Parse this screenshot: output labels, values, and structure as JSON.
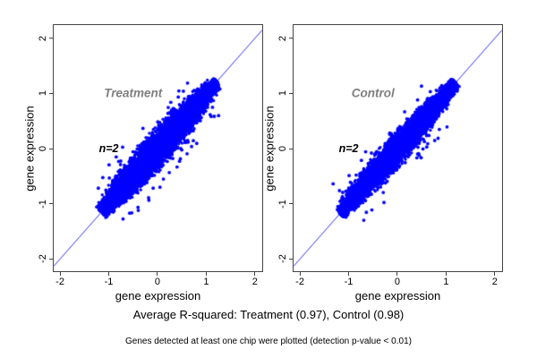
{
  "chart_data": {
    "type": "scatter",
    "layout": "two-panel side-by-side, shared styling, identity reference line",
    "caption": "Average R-squared: Treatment (0.97), Control (0.98)",
    "footnote": "Genes detected at least one chip were plotted (detection p-value < 0.01)",
    "colors": {
      "point": "#0000FF",
      "reference_line": "#3333F0",
      "box": "#444444",
      "group_label": "#7F7F7F",
      "annotation": "#000000",
      "background": "#FFFFFF"
    },
    "panels": [
      {
        "title": "Treatment",
        "annotation": "n=2",
        "n_chips": 2,
        "r_squared": 0.97,
        "xlabel": "gene expression",
        "ylabel": "gene expression",
        "xlim": [
          -2.13,
          2.15
        ],
        "ylim": [
          -2.22,
          2.24
        ],
        "xticks": [
          -2,
          -1,
          0,
          1,
          2
        ],
        "yticks": [
          -2,
          -1,
          0,
          1,
          2
        ],
        "xtick_labels": [
          "-2",
          "-1",
          "0",
          "1",
          "2"
        ],
        "ytick_labels": [
          "-2",
          "-1",
          "0",
          "1",
          "2"
        ],
        "reference_line": "y = x",
        "label_pos": {
          "title": [
            -0.5,
            1.0
          ],
          "annotation": [
            -1.0,
            0.0
          ]
        },
        "cloud": {
          "seed": 101,
          "n_core": 7200,
          "t_min": -1.16,
          "t_max": 1.22,
          "t_mean": -0.05,
          "t_sd": 0.6,
          "uniform_frac": 0.35,
          "width_floor": 0.012,
          "width_max": 0.105,
          "width_shape": 1.3,
          "width_clip": 2.8,
          "n_outliers": 100,
          "outlier_d_min": 0.1,
          "outlier_d_max": 0.55,
          "outlier_below_frac": 0.68,
          "outlier_t_min": -1.0,
          "outlier_t_max": 0.95,
          "point_radius": 1.7,
          "outlier_radius": 1.9
        }
      },
      {
        "title": "Control",
        "annotation": "n=2",
        "n_chips": 2,
        "r_squared": 0.98,
        "xlabel": "gene expression",
        "ylabel": "gene expression",
        "xlim": [
          -2.13,
          2.15
        ],
        "ylim": [
          -2.22,
          2.24
        ],
        "xticks": [
          -2,
          -1,
          0,
          1,
          2
        ],
        "yticks": [
          -2,
          -1,
          0,
          1,
          2
        ],
        "xtick_labels": [
          "-2",
          "-1",
          "0",
          "1",
          "2"
        ],
        "ytick_labels": [
          "-2",
          "-1",
          "0",
          "1",
          "2"
        ],
        "reference_line": "y = x",
        "label_pos": {
          "title": [
            -0.5,
            1.0
          ],
          "annotation": [
            -1.0,
            0.0
          ]
        },
        "cloud": {
          "seed": 202,
          "n_core": 7200,
          "t_min": -1.18,
          "t_max": 1.2,
          "t_mean": -0.05,
          "t_sd": 0.6,
          "uniform_frac": 0.35,
          "width_floor": 0.012,
          "width_max": 0.085,
          "width_shape": 1.3,
          "width_clip": 2.8,
          "n_outliers": 85,
          "outlier_d_min": 0.1,
          "outlier_d_max": 0.5,
          "outlier_below_frac": 0.62,
          "outlier_t_min": -1.0,
          "outlier_t_max": 0.9,
          "point_radius": 1.7,
          "outlier_radius": 1.9
        }
      }
    ]
  }
}
